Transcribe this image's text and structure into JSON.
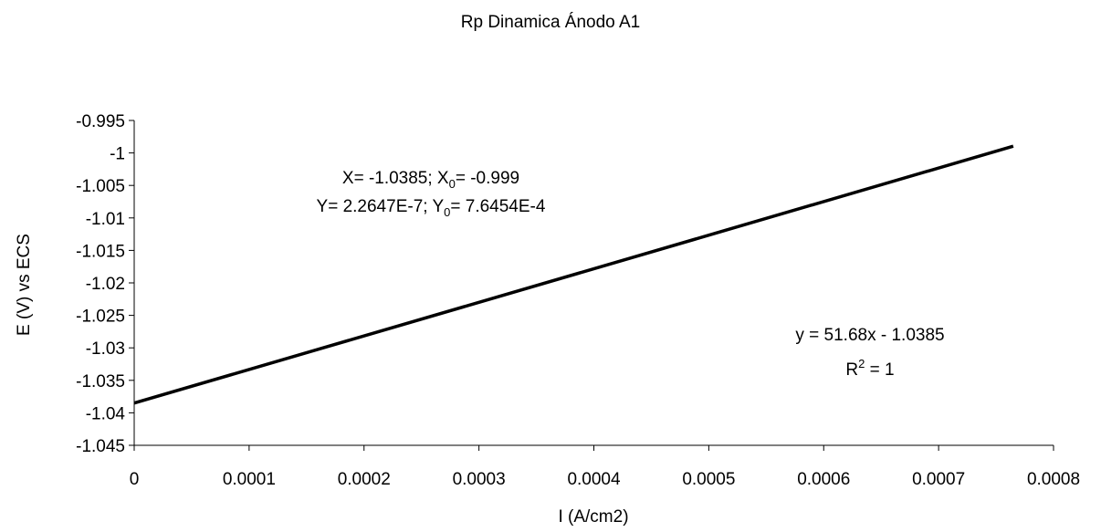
{
  "chart_data": {
    "type": "line",
    "title": "Rp Dinamica Ánodo A1",
    "xlabel": "I (A/cm2)",
    "ylabel": "E (V) vs ECS",
    "xlim": [
      0,
      0.0008
    ],
    "ylim": [
      -1.045,
      -0.995
    ],
    "x_ticks": [
      "0",
      "0.0001",
      "0.0002",
      "0.0003",
      "0.0004",
      "0.0005",
      "0.0006",
      "0.0007",
      "0.0008"
    ],
    "y_ticks": [
      "-0.995",
      "-1",
      "-1.005",
      "-1.01",
      "-1.015",
      "-1.02",
      "-1.025",
      "-1.03",
      "-1.035",
      "-1.04",
      "-1.045"
    ],
    "grid": false,
    "series": [
      {
        "x": [
          0,
          0.000765
        ],
        "y": [
          -1.0385,
          -0.99896
        ],
        "color": "#000000"
      }
    ],
    "annotations": {
      "intercepts_line1": {
        "a_pre": "X= -1.0385; X",
        "a_sub": "0",
        "b": "= -0.999"
      },
      "intercepts_line2": {
        "a_pre": "Y= 2.2647E-7; Y",
        "a_sub": "0",
        "b": "= 7.6454E-4"
      },
      "trend_equation": "y = 51.68x - 1.0385",
      "r2_prefix": "R",
      "r2_sup": "2",
      "r2_suffix": " = 1"
    }
  }
}
